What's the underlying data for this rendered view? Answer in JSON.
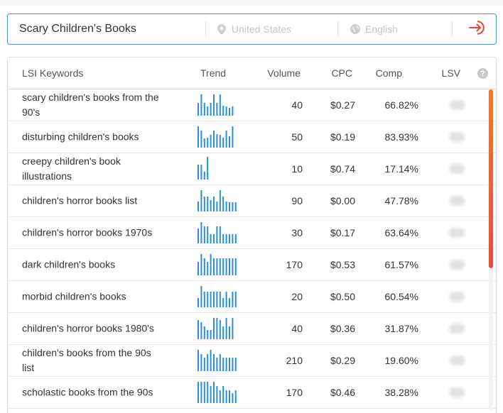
{
  "search": {
    "query": "Scary Children's Books",
    "location_placeholder": "United States",
    "language_placeholder": "English"
  },
  "table": {
    "headers": {
      "keyword": "LSI Keywords",
      "trend": "Trend",
      "volume": "Volume",
      "cpc": "CPC",
      "comp": "Comp",
      "lsv": "LSV",
      "help": "?"
    },
    "rows": [
      {
        "keyword": "scary children's books from the 90's",
        "volume": "40",
        "cpc": "$0.27",
        "comp": "66.82%",
        "trend": [
          0.55,
          0.95,
          0.55,
          0.4,
          0.55,
          0.95,
          0.55,
          0.95,
          0.45,
          0.4,
          0.35,
          0.4
        ]
      },
      {
        "keyword": "disturbing children's books",
        "volume": "50",
        "cpc": "$0.19",
        "comp": "83.93%",
        "trend": [
          0.95,
          0.75,
          0.4,
          0.45,
          0.55,
          0.75,
          0.6,
          0.55,
          0.45,
          0.75,
          0.5,
          0.95
        ]
      },
      {
        "keyword": "creepy children's book illustrations",
        "volume": "10",
        "cpc": "$0.74",
        "comp": "17.14%",
        "trend": [
          0.65,
          0.65,
          0.35,
          1.0
        ]
      },
      {
        "keyword": "children's horror books list",
        "volume": "90",
        "cpc": "$0.00",
        "comp": "47.78%",
        "trend": [
          0.45,
          0.95,
          0.65,
          0.65,
          0.5,
          0.65,
          0.45,
          0.95,
          0.65,
          0.45,
          0.4,
          0.4,
          0.4
        ]
      },
      {
        "keyword": "children's horror books 1970s",
        "volume": "30",
        "cpc": "$0.17",
        "comp": "63.64%",
        "trend": [
          0.65,
          0.95,
          0.75,
          0.75,
          0.4,
          0.4,
          0.75,
          0.75,
          0.4,
          0.4,
          0.4,
          0.4,
          0.4
        ]
      },
      {
        "keyword": "dark children's books",
        "volume": "170",
        "cpc": "$0.53",
        "comp": "61.57%",
        "trend": [
          0.6,
          0.95,
          0.75,
          0.6,
          0.95,
          0.75,
          0.75,
          0.75,
          0.75,
          0.75,
          0.75,
          0.75,
          0.75
        ]
      },
      {
        "keyword": "morbid children's books",
        "volume": "20",
        "cpc": "$0.50",
        "comp": "60.54%",
        "trend": [
          0.4,
          0.95,
          0.7,
          0.7,
          0.7,
          0.7,
          0.7,
          0.7,
          0.4,
          0.7,
          0.4,
          0.7,
          0.7
        ]
      },
      {
        "keyword": "children's horror books 1980's",
        "volume": "40",
        "cpc": "$0.36",
        "comp": "31.87%",
        "trend": [
          0.85,
          0.75,
          0.55,
          0.4,
          0.4,
          0.95,
          0.95,
          0.85,
          0.55,
          0.95,
          0.55,
          0.95
        ]
      },
      {
        "keyword": "children's books from the 90s list",
        "volume": "210",
        "cpc": "$0.29",
        "comp": "19.60%",
        "trend": [
          0.95,
          0.75,
          0.6,
          0.75,
          0.95,
          0.75,
          0.6,
          0.75,
          0.6,
          0.6,
          0.6,
          0.6,
          0.6
        ]
      },
      {
        "keyword": "scholastic books from the 90s",
        "volume": "170",
        "cpc": "$0.46",
        "comp": "38.28%",
        "trend": [
          0.95,
          0.95,
          0.95,
          0.95,
          0.75,
          0.95,
          0.75,
          0.55,
          0.75,
          0.55,
          0.55,
          0.45,
          0.55
        ]
      }
    ]
  },
  "colors": {
    "bar": "#2b8fd8",
    "accent": "#e8463a",
    "border_focus": "#4a90e2"
  },
  "icons": {
    "location": "map-pin-icon",
    "language": "globe-icon",
    "go": "login-arrow-icon",
    "help": "help-icon"
  }
}
